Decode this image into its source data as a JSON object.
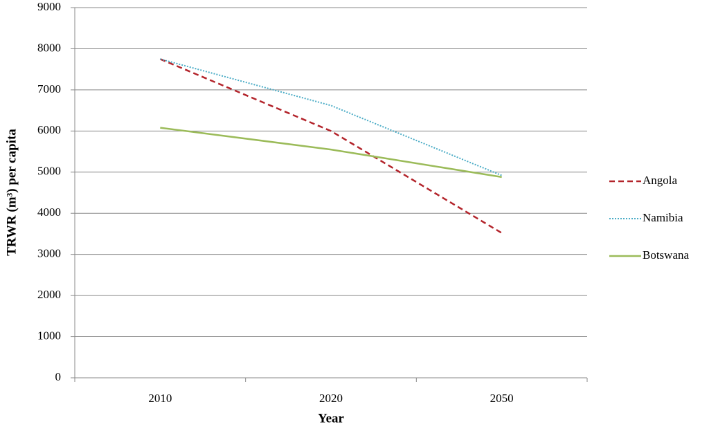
{
  "chart_data": {
    "type": "line",
    "xlabel": "Year",
    "ylabel": "TRWR (m³) per capita",
    "categories": [
      "2010",
      "2020",
      "2050"
    ],
    "series": [
      {
        "name": "Angola",
        "color": "#b3242b",
        "dash": "dashed",
        "values": [
          7750,
          6000,
          3520
        ]
      },
      {
        "name": "Namibia",
        "color": "#4bacc6",
        "dash": "dotted",
        "values": [
          7750,
          6620,
          4920
        ]
      },
      {
        "name": "Botswana",
        "color": "#9bbb59",
        "dash": "solid",
        "values": [
          6080,
          5550,
          4880
        ]
      }
    ],
    "ylim": [
      0,
      9000
    ],
    "yticks": [
      0,
      1000,
      2000,
      3000,
      4000,
      5000,
      6000,
      7000,
      8000,
      9000
    ],
    "grid": true,
    "legend": "right"
  }
}
